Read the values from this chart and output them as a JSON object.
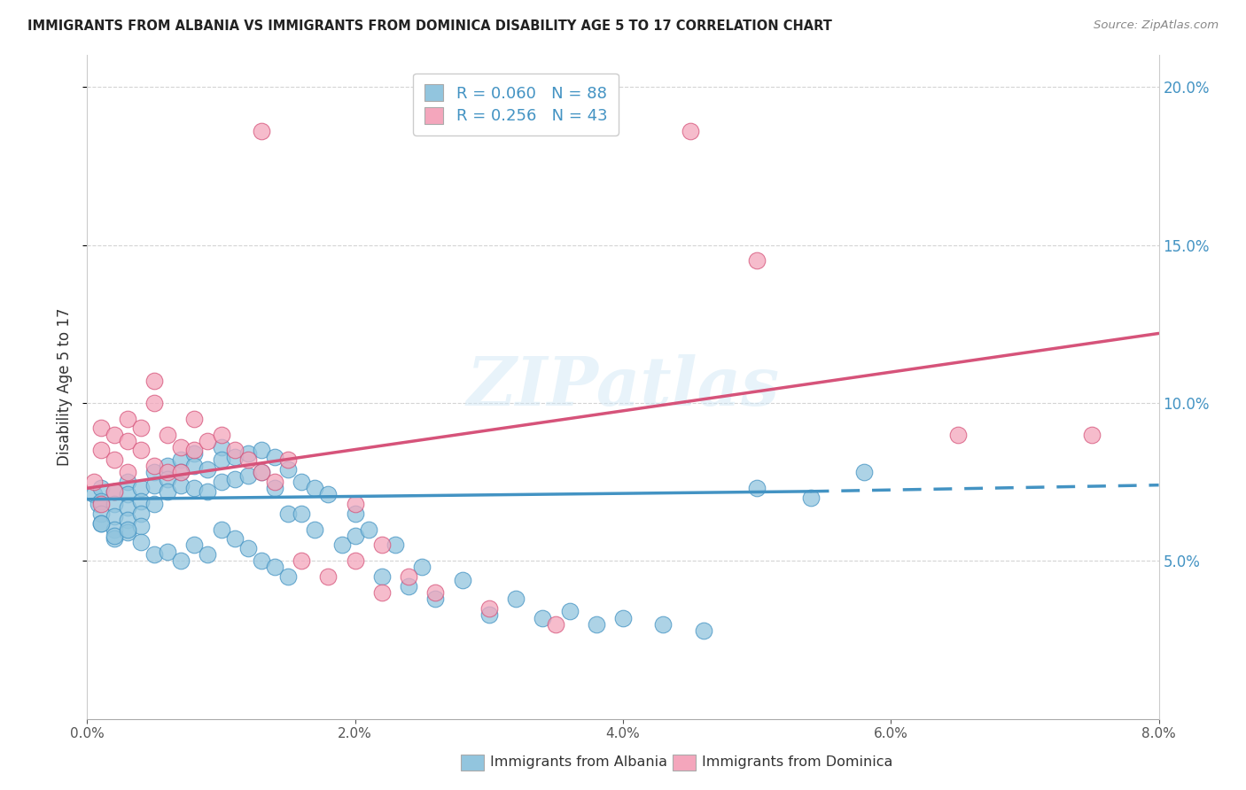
{
  "title": "IMMIGRANTS FROM ALBANIA VS IMMIGRANTS FROM DOMINICA DISABILITY AGE 5 TO 17 CORRELATION CHART",
  "source": "Source: ZipAtlas.com",
  "ylabel": "Disability Age 5 to 17",
  "legend_albania": "Immigrants from Albania",
  "legend_dominica": "Immigrants from Dominica",
  "R_albania": 0.06,
  "N_albania": 88,
  "R_dominica": 0.256,
  "N_dominica": 43,
  "color_albania": "#92c5de",
  "color_dominica": "#f4a6bc",
  "line_albania": "#4393c3",
  "line_dominica": "#d6537a",
  "xmin": 0.0,
  "xmax": 0.08,
  "ymin": 0.0,
  "ymax": 0.21,
  "yticks_right": [
    0.05,
    0.1,
    0.15,
    0.2
  ],
  "xticks": [
    0.0,
    0.02,
    0.04,
    0.06,
    0.08
  ],
  "watermark": "ZIPatlas",
  "albania_x": [
    0.0005,
    0.0008,
    0.001,
    0.001,
    0.001,
    0.001,
    0.002,
    0.002,
    0.002,
    0.002,
    0.002,
    0.003,
    0.003,
    0.003,
    0.003,
    0.003,
    0.004,
    0.004,
    0.004,
    0.004,
    0.005,
    0.005,
    0.005,
    0.006,
    0.006,
    0.006,
    0.007,
    0.007,
    0.007,
    0.008,
    0.008,
    0.008,
    0.009,
    0.009,
    0.01,
    0.01,
    0.01,
    0.011,
    0.011,
    0.012,
    0.012,
    0.013,
    0.013,
    0.014,
    0.014,
    0.015,
    0.015,
    0.016,
    0.016,
    0.017,
    0.017,
    0.018,
    0.019,
    0.02,
    0.02,
    0.021,
    0.022,
    0.023,
    0.024,
    0.025,
    0.026,
    0.028,
    0.03,
    0.032,
    0.034,
    0.036,
    0.038,
    0.04,
    0.043,
    0.046,
    0.05,
    0.054,
    0.058,
    0.001,
    0.002,
    0.003,
    0.004,
    0.005,
    0.006,
    0.007,
    0.008,
    0.009,
    0.01,
    0.011,
    0.012,
    0.013,
    0.014,
    0.015
  ],
  "albania_y": [
    0.071,
    0.068,
    0.073,
    0.069,
    0.065,
    0.062,
    0.072,
    0.068,
    0.064,
    0.06,
    0.057,
    0.075,
    0.071,
    0.067,
    0.063,
    0.059,
    0.073,
    0.069,
    0.065,
    0.061,
    0.078,
    0.074,
    0.068,
    0.08,
    0.076,
    0.072,
    0.082,
    0.078,
    0.074,
    0.084,
    0.08,
    0.073,
    0.079,
    0.072,
    0.086,
    0.082,
    0.075,
    0.083,
    0.076,
    0.084,
    0.077,
    0.085,
    0.078,
    0.083,
    0.073,
    0.079,
    0.065,
    0.075,
    0.065,
    0.073,
    0.06,
    0.071,
    0.055,
    0.065,
    0.058,
    0.06,
    0.045,
    0.055,
    0.042,
    0.048,
    0.038,
    0.044,
    0.033,
    0.038,
    0.032,
    0.034,
    0.03,
    0.032,
    0.03,
    0.028,
    0.073,
    0.07,
    0.078,
    0.062,
    0.058,
    0.06,
    0.056,
    0.052,
    0.053,
    0.05,
    0.055,
    0.052,
    0.06,
    0.057,
    0.054,
    0.05,
    0.048,
    0.045
  ],
  "dominica_x": [
    0.0005,
    0.001,
    0.001,
    0.001,
    0.002,
    0.002,
    0.002,
    0.003,
    0.003,
    0.003,
    0.004,
    0.004,
    0.005,
    0.005,
    0.005,
    0.006,
    0.006,
    0.007,
    0.007,
    0.008,
    0.008,
    0.009,
    0.01,
    0.011,
    0.012,
    0.013,
    0.014,
    0.015,
    0.016,
    0.018,
    0.02,
    0.022,
    0.024,
    0.026,
    0.03,
    0.035,
    0.045,
    0.05,
    0.065,
    0.075,
    0.013,
    0.02,
    0.022
  ],
  "dominica_y": [
    0.075,
    0.085,
    0.092,
    0.068,
    0.09,
    0.082,
    0.072,
    0.095,
    0.088,
    0.078,
    0.092,
    0.085,
    0.1,
    0.107,
    0.08,
    0.078,
    0.09,
    0.086,
    0.078,
    0.085,
    0.095,
    0.088,
    0.09,
    0.085,
    0.082,
    0.078,
    0.075,
    0.082,
    0.05,
    0.045,
    0.068,
    0.055,
    0.045,
    0.04,
    0.035,
    0.03,
    0.186,
    0.145,
    0.09,
    0.09,
    0.186,
    0.05,
    0.04
  ],
  "albania_trend_x0": 0.0,
  "albania_trend_x_solid_end": 0.054,
  "albania_trend_y0": 0.0695,
  "albania_trend_y_solid_end": 0.072,
  "albania_trend_y_end": 0.074,
  "dominica_trend_x0": 0.0,
  "dominica_trend_xend": 0.08,
  "dominica_trend_y0": 0.073,
  "dominica_trend_yend": 0.122
}
